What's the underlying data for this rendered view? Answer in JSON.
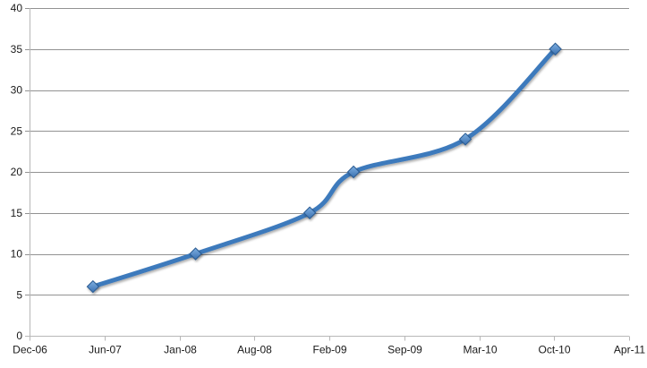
{
  "chart_data": {
    "type": "line",
    "smooth": true,
    "title": "",
    "legend": "none",
    "grid": true,
    "background": "#ffffff",
    "x_axis": {
      "kind": "date",
      "tick_labels": [
        "Dec-06",
        "Jun-07",
        "Jan-08",
        "Aug-08",
        "Feb-09",
        "Sep-09",
        "Mar-10",
        "Oct-10",
        "Apr-11"
      ],
      "min_months": 0,
      "max_months": 52,
      "tick_interval_months": 6.5
    },
    "y_axis": {
      "min": 0,
      "max": 40,
      "step": 5,
      "tick_labels": [
        "0",
        "5",
        "10",
        "15",
        "20",
        "25",
        "30",
        "35",
        "40"
      ]
    },
    "series": [
      {
        "marker": "diamond",
        "points": [
          {
            "x_months": 5.5,
            "approx_date": "May-07",
            "value": 6
          },
          {
            "x_months": 14.4,
            "approx_date": "Feb-08",
            "value": 10
          },
          {
            "x_months": 24.3,
            "approx_date": "Dec-08",
            "value": 15
          },
          {
            "x_months": 28.1,
            "approx_date": "Apr-09",
            "value": 20
          },
          {
            "x_months": 37.8,
            "approx_date": "Jan-10",
            "value": 24
          },
          {
            "x_months": 45.6,
            "approx_date": "Sep-10",
            "value": 35
          }
        ]
      }
    ],
    "colors": {
      "line": "#3E7ABC",
      "marker_fill_top": "#7FB0E2",
      "marker_fill_bottom": "#3A70B0",
      "marker_stroke": "#2B5C93",
      "gridline": "#929292",
      "axis": "#b7b7b7",
      "label": "#1a1a1a",
      "background": "#ffffff"
    }
  }
}
